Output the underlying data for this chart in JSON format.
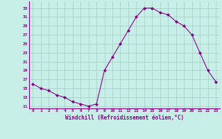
{
  "x": [
    0,
    1,
    2,
    3,
    4,
    5,
    6,
    7,
    8,
    9,
    10,
    11,
    12,
    13,
    14,
    15,
    16,
    17,
    18,
    19,
    20,
    21,
    22,
    23
  ],
  "y": [
    16,
    15,
    14.5,
    13.5,
    13,
    12,
    11.5,
    11,
    11.5,
    19,
    22,
    25,
    28,
    31,
    33,
    33,
    32,
    31.5,
    30,
    29,
    27,
    23,
    19,
    16.5
  ],
  "line_color": "#880088",
  "marker": "D",
  "marker_size": 2.0,
  "bg_color": "#c8eee8",
  "grid_color": "#a0ccc0",
  "xlabel": "Windchill (Refroidissement éolien,°C)",
  "xlabel_color": "#880088",
  "tick_color": "#880088",
  "yticks": [
    11,
    13,
    15,
    17,
    19,
    21,
    23,
    25,
    27,
    29,
    31,
    33
  ],
  "xticks": [
    0,
    1,
    2,
    3,
    4,
    5,
    6,
    7,
    8,
    9,
    10,
    11,
    12,
    13,
    14,
    15,
    16,
    17,
    18,
    19,
    20,
    21,
    22,
    23
  ],
  "ylim": [
    10.5,
    34.5
  ],
  "xlim": [
    -0.5,
    23.5
  ]
}
